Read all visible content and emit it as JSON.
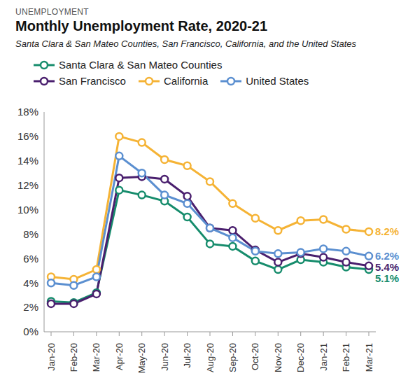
{
  "chart_data": {
    "type": "line",
    "supertitle": "UNEMPLOYMENT",
    "title": "Monthly Unemployment Rate, 2020-21",
    "subtitle": "Santa Clara & San Mateo Counties, San Francisco, California, and the United States",
    "categories": [
      "Jan-20",
      "Feb-20",
      "Mar-20",
      "Apr-20",
      "May-20",
      "Jun-20",
      "Jul-20",
      "Aug-20",
      "Sep-20",
      "Oct-20",
      "Nov-20",
      "Dec-20",
      "Jan-21",
      "Feb-21",
      "Mar-21"
    ],
    "series": [
      {
        "name": "Santa Clara & San Mateo Counties",
        "color": "#168c6c",
        "values": [
          2.5,
          2.4,
          3.2,
          11.6,
          11.2,
          10.7,
          9.4,
          7.2,
          7.0,
          5.8,
          5.1,
          5.9,
          5.7,
          5.3,
          5.1
        ],
        "value_labels": [
          null,
          null,
          null,
          null,
          null,
          null,
          null,
          null,
          null,
          null,
          null,
          null,
          null,
          null,
          "5.1%"
        ]
      },
      {
        "name": "San Francisco",
        "color": "#4a1f6e",
        "values": [
          2.3,
          2.3,
          3.1,
          12.6,
          12.7,
          12.5,
          11.1,
          8.5,
          8.3,
          6.7,
          5.7,
          6.4,
          6.1,
          5.7,
          5.4
        ],
        "value_labels": [
          null,
          null,
          null,
          null,
          null,
          null,
          null,
          null,
          null,
          null,
          null,
          null,
          null,
          null,
          "5.4%"
        ]
      },
      {
        "name": "California",
        "color": "#f5b335",
        "values": [
          4.5,
          4.3,
          5.1,
          16.0,
          15.5,
          14.1,
          13.6,
          12.3,
          10.5,
          9.3,
          8.3,
          9.1,
          9.2,
          8.4,
          8.2
        ],
        "value_labels": [
          null,
          null,
          null,
          null,
          null,
          null,
          null,
          null,
          null,
          null,
          null,
          null,
          null,
          null,
          "8.2%"
        ]
      },
      {
        "name": "United States",
        "color": "#5b8fd0",
        "values": [
          4.0,
          3.8,
          4.5,
          14.4,
          13.0,
          11.2,
          10.5,
          8.5,
          7.7,
          6.6,
          6.4,
          6.5,
          6.8,
          6.6,
          6.2
        ],
        "value_labels": [
          null,
          null,
          null,
          null,
          null,
          null,
          null,
          null,
          null,
          null,
          null,
          null,
          null,
          null,
          "6.2%"
        ]
      }
    ],
    "ylim": [
      0,
      18
    ],
    "yticks": [
      {
        "value": 0,
        "label": "0%"
      },
      {
        "value": 2,
        "label": "2%"
      },
      {
        "value": 4,
        "label": "4%"
      },
      {
        "value": 6,
        "label": "6%"
      },
      {
        "value": 8,
        "label": "8%"
      },
      {
        "value": 10,
        "label": "10%"
      },
      {
        "value": 12,
        "label": "12%"
      },
      {
        "value": 14,
        "label": "14%"
      },
      {
        "value": 16,
        "label": "16%"
      },
      {
        "value": 18,
        "label": "18%"
      }
    ],
    "grid": false,
    "legend": "top",
    "marker": "circle"
  }
}
